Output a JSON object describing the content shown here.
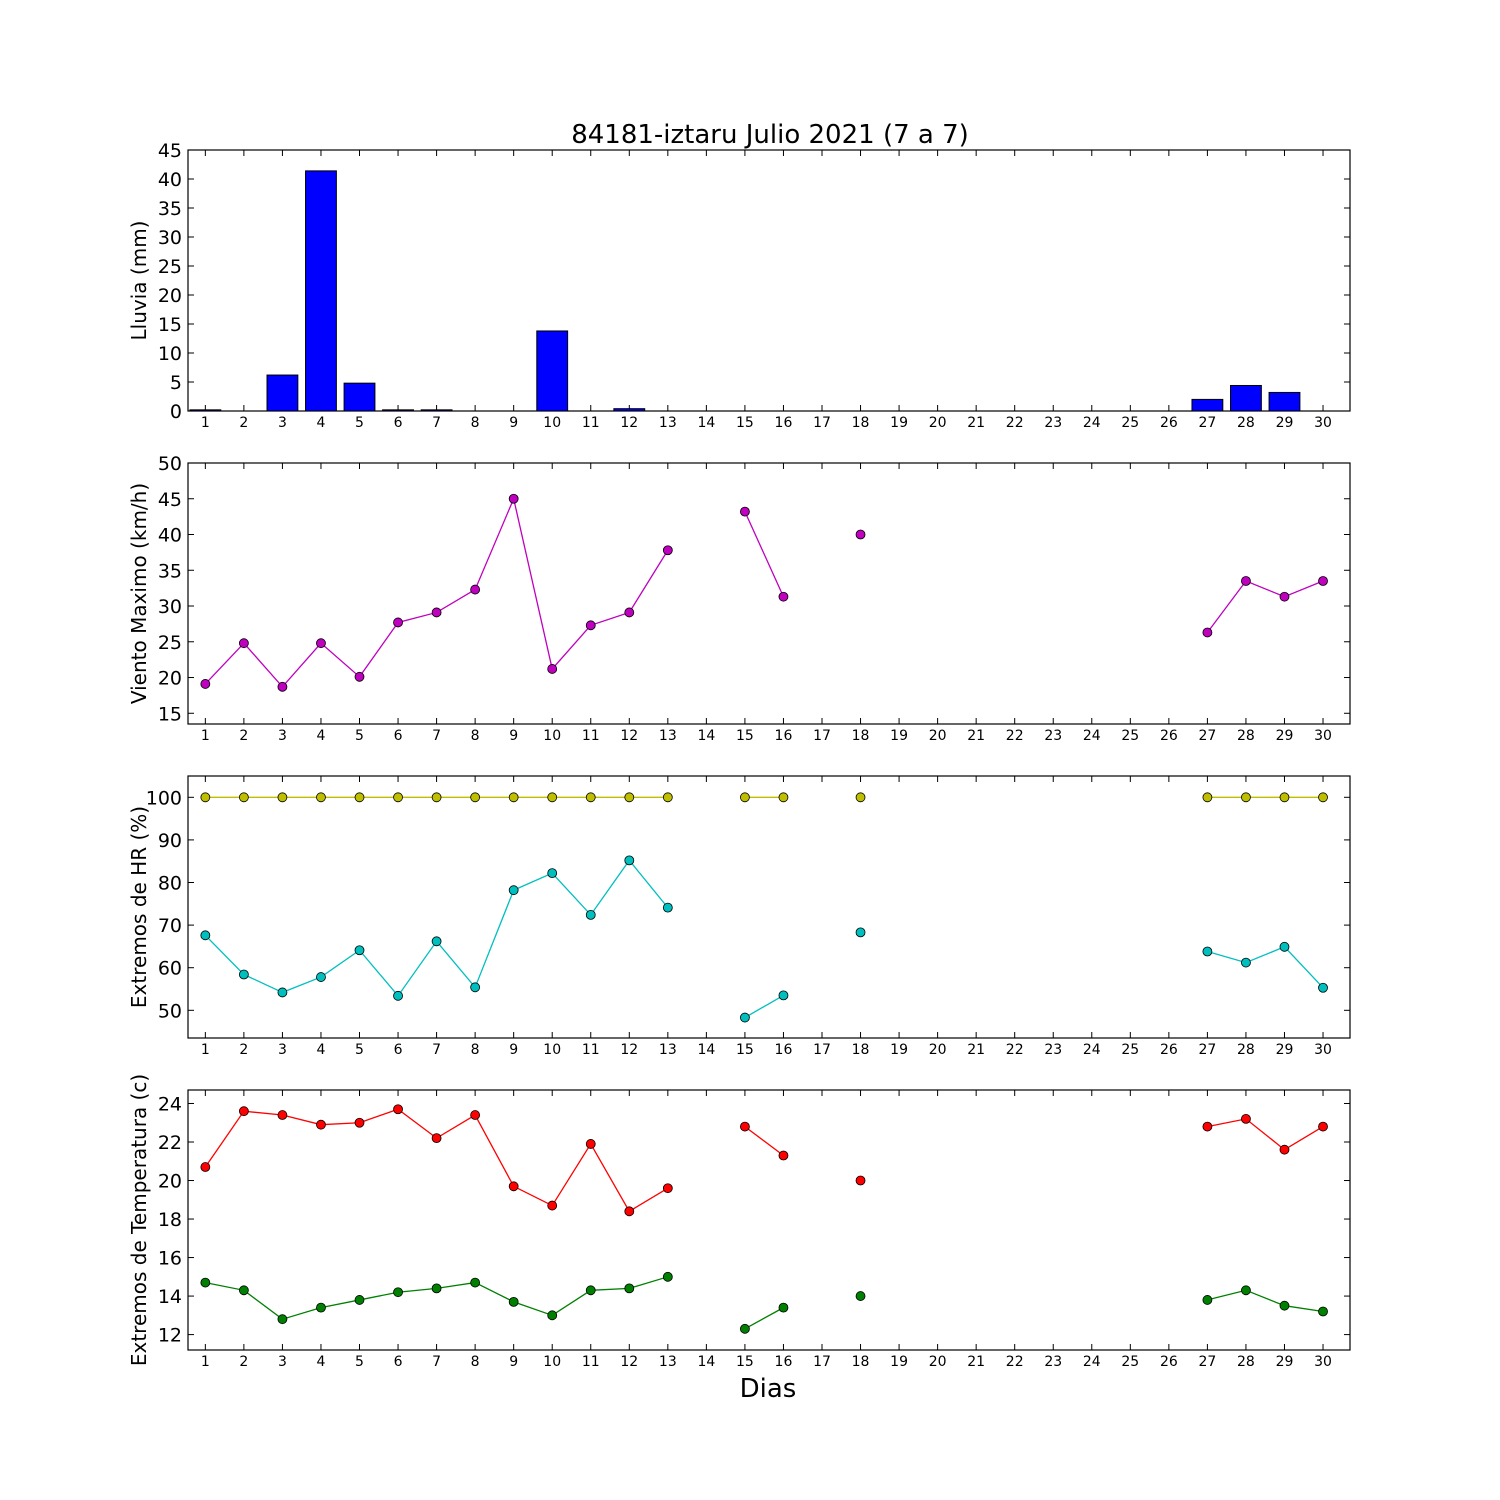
{
  "title": "84181-iztaru Julio 2021  (7 a 7)",
  "xlabel": "Dias",
  "chart_data": [
    {
      "type": "bar",
      "ylabel": "Lluvia (mm)",
      "ylim": [
        0,
        45
      ],
      "yticks": [
        0,
        5,
        10,
        15,
        20,
        25,
        30,
        35,
        40,
        45
      ],
      "x": [
        1,
        2,
        3,
        4,
        5,
        6,
        7,
        8,
        9,
        10,
        11,
        12,
        13,
        14,
        15,
        16,
        17,
        18,
        19,
        20,
        21,
        22,
        23,
        24,
        25,
        26,
        27,
        28,
        29,
        30
      ],
      "series": [
        {
          "color": "#0000ff",
          "values": [
            0.2,
            0,
            6.2,
            41.4,
            4.8,
            0.2,
            0.2,
            0,
            0,
            13.8,
            0,
            0.4,
            0,
            0,
            0,
            0,
            0,
            0,
            0,
            0,
            0,
            0,
            0,
            0,
            0,
            0,
            2.0,
            4.4,
            3.2,
            0
          ]
        }
      ]
    },
    {
      "type": "line",
      "ylabel": "Viento Maximo (km/h)",
      "ylim": [
        13.5,
        50
      ],
      "yticks": [
        15,
        20,
        25,
        30,
        35,
        40,
        45,
        50
      ],
      "x": [
        1,
        2,
        3,
        4,
        5,
        6,
        7,
        8,
        9,
        10,
        11,
        12,
        13,
        14,
        15,
        16,
        17,
        18,
        19,
        20,
        21,
        22,
        23,
        24,
        25,
        26,
        27,
        28,
        29,
        30
      ],
      "series": [
        {
          "color": "#bf00bf",
          "values": [
            19.1,
            24.8,
            18.7,
            24.8,
            20.1,
            27.7,
            29.1,
            32.3,
            45.0,
            21.2,
            27.3,
            29.1,
            37.8,
            null,
            43.2,
            31.3,
            null,
            40.0,
            null,
            null,
            null,
            null,
            null,
            null,
            null,
            null,
            26.3,
            33.5,
            31.3,
            33.5
          ]
        }
      ]
    },
    {
      "type": "line",
      "ylabel": "Extremos de HR (%)",
      "ylim": [
        43.5,
        105
      ],
      "yticks": [
        50,
        60,
        70,
        80,
        90,
        100
      ],
      "x": [
        1,
        2,
        3,
        4,
        5,
        6,
        7,
        8,
        9,
        10,
        11,
        12,
        13,
        14,
        15,
        16,
        17,
        18,
        19,
        20,
        21,
        22,
        23,
        24,
        25,
        26,
        27,
        28,
        29,
        30
      ],
      "series": [
        {
          "color": "#bfbf00",
          "values": [
            100,
            100,
            100,
            100,
            100,
            100,
            100,
            100,
            100,
            100,
            100,
            100,
            100,
            null,
            100,
            100,
            null,
            100,
            null,
            null,
            null,
            null,
            null,
            null,
            null,
            null,
            100,
            100,
            100,
            100
          ]
        },
        {
          "color": "#00bfbf",
          "values": [
            67.6,
            58.4,
            54.2,
            57.8,
            64.1,
            53.4,
            66.2,
            55.4,
            78.2,
            82.2,
            72.4,
            85.2,
            74.1,
            null,
            48.3,
            53.5,
            null,
            68.3,
            null,
            null,
            null,
            null,
            null,
            null,
            null,
            null,
            63.8,
            61.2,
            64.9,
            55.3
          ]
        }
      ]
    },
    {
      "type": "line",
      "ylabel": "Extremos de Temperatura (c)",
      "ylim": [
        11.2,
        24.7
      ],
      "yticks": [
        12,
        14,
        16,
        18,
        20,
        22,
        24
      ],
      "x": [
        1,
        2,
        3,
        4,
        5,
        6,
        7,
        8,
        9,
        10,
        11,
        12,
        13,
        14,
        15,
        16,
        17,
        18,
        19,
        20,
        21,
        22,
        23,
        24,
        25,
        26,
        27,
        28,
        29,
        30
      ],
      "series": [
        {
          "color": "#ff0000",
          "values": [
            20.7,
            23.6,
            23.4,
            22.9,
            23.0,
            23.7,
            22.2,
            23.4,
            19.7,
            18.7,
            21.9,
            18.4,
            19.6,
            null,
            22.8,
            21.3,
            null,
            20.0,
            null,
            null,
            null,
            null,
            null,
            null,
            null,
            null,
            22.8,
            23.2,
            21.6,
            22.8
          ]
        },
        {
          "color": "#008000",
          "values": [
            14.7,
            14.3,
            12.8,
            13.4,
            13.8,
            14.2,
            14.4,
            14.7,
            13.7,
            13.0,
            14.3,
            14.4,
            15.0,
            null,
            12.3,
            13.4,
            null,
            14.0,
            null,
            null,
            null,
            null,
            null,
            null,
            null,
            null,
            13.8,
            14.3,
            13.5,
            13.2
          ]
        }
      ]
    }
  ]
}
